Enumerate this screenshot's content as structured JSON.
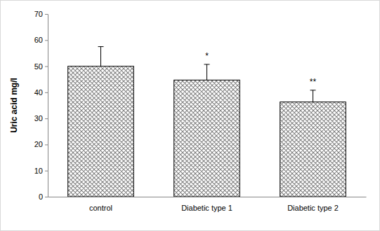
{
  "chart_data": {
    "type": "bar",
    "y_label": "Uric acid mg/l",
    "categories": [
      "control",
      "Diabetic type 1",
      "Diabetic type 2"
    ],
    "values": [
      50,
      44.7,
      36.3
    ],
    "errors": [
      7.5,
      6,
      4.5
    ],
    "annotations": [
      null,
      "*",
      "**"
    ],
    "color": "#7f7f7f",
    "ylim": [
      0,
      70
    ],
    "yticks": [
      0,
      10,
      20,
      30,
      40,
      50,
      60,
      70
    ],
    "grid": false
  }
}
